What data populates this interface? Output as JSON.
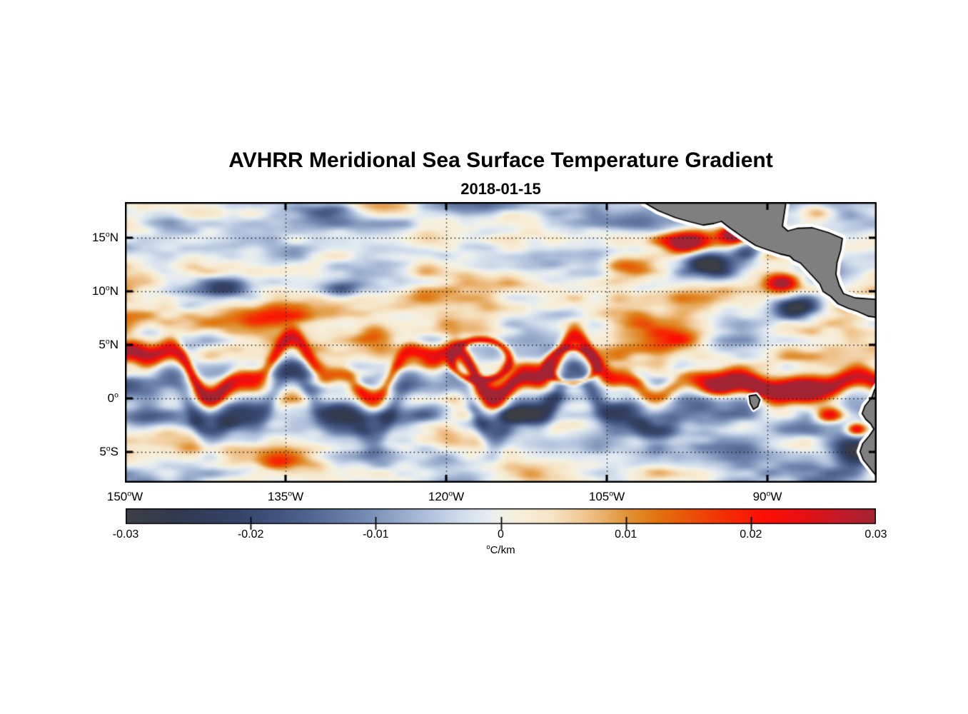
{
  "title": "AVHRR Meridional Sea Surface Temperature Gradient",
  "subtitle": "2018-01-15",
  "colorbar": {
    "ticks": [
      {
        "label": "-0.03",
        "value": -0.03
      },
      {
        "label": "-0.02",
        "value": -0.02
      },
      {
        "label": "-0.01",
        "value": -0.01
      },
      {
        "label": "0",
        "value": 0
      },
      {
        "label": "0.01",
        "value": 0.01
      },
      {
        "label": "0.02",
        "value": 0.02
      },
      {
        "label": "0.03",
        "value": 0.03
      }
    ],
    "range": [
      -0.03,
      0.03
    ],
    "unit": {
      "deg": "o",
      "rest": "C/km"
    }
  },
  "chart_data": {
    "type": "heatmap",
    "variable": "AVHRR meridional sea surface temperature gradient",
    "date": "2018-01-15",
    "units": "degC/km",
    "value_range": [
      -0.03,
      0.03
    ],
    "lon_range": [
      -150,
      -79.8
    ],
    "lat_range": [
      -7.85,
      18.35
    ],
    "grid": "dotted",
    "x_ticks": [
      {
        "num": "150",
        "deg": "o",
        "hemi": "W",
        "lon": -150
      },
      {
        "num": "135",
        "deg": "o",
        "hemi": "W",
        "lon": -135
      },
      {
        "num": "120",
        "deg": "o",
        "hemi": "W",
        "lon": -120
      },
      {
        "num": "105",
        "deg": "o",
        "hemi": "W",
        "lon": -105
      },
      {
        "num": "90",
        "deg": "o",
        "hemi": "W",
        "lon": -90
      }
    ],
    "y_ticks": [
      {
        "num": "15",
        "deg": "o",
        "hemi": "N",
        "lat": 15
      },
      {
        "num": "10",
        "deg": "o",
        "hemi": "N",
        "lat": 10
      },
      {
        "num": "5",
        "deg": "o",
        "hemi": "N",
        "lat": 5
      },
      {
        "num": "0",
        "deg": "o",
        "hemi": "",
        "lat": 0
      },
      {
        "num": "5",
        "deg": "o",
        "hemi": "S",
        "lat": -5
      }
    ],
    "colormap_stops": [
      [
        -0.03,
        "#3c4046"
      ],
      [
        -0.026,
        "#31394e"
      ],
      [
        -0.021,
        "#344368"
      ],
      [
        -0.016,
        "#4b5f8b"
      ],
      [
        -0.011,
        "#7289b1"
      ],
      [
        -0.006,
        "#aebfda"
      ],
      [
        -0.003,
        "#d3dfec"
      ],
      [
        -0.0012,
        "#e4ebf1"
      ],
      [
        0.0,
        "#eff1e8"
      ],
      [
        0.0012,
        "#f7efdc"
      ],
      [
        0.004,
        "#f6e6c8"
      ],
      [
        0.007,
        "#efc28b"
      ],
      [
        0.01,
        "#e09438"
      ],
      [
        0.0125,
        "#e2740f"
      ],
      [
        0.015,
        "#e95408"
      ],
      [
        0.018,
        "#f42d04"
      ],
      [
        0.021,
        "#fc0f03"
      ],
      [
        0.024,
        "#e90f12"
      ],
      [
        0.027,
        "#c51a27"
      ],
      [
        0.03,
        "#a22433"
      ]
    ],
    "visible_features": [
      "meandering positive (orange/red) front along 1-6N with tropical-instability-wave cusps and rings",
      "negative (slate blue) band just south of the equator",
      "strong red / dark-blue dipoles off Gulf of Tehuantepec and Gulf of Papagayo near the Central American coast",
      "dark red gradient maxima along 0.5-1.5N east of 100W and off Ecuador/Peru",
      "gray land (Mexico, Central America, Galapagos, South America) with white no-data coastal strips"
    ],
    "land": {
      "fill": "#7f7f7f",
      "outline": "#000000",
      "coast_gap_color": "#ffffff",
      "polygons": [
        {
          "name": "mexico-central-america",
          "halo": 11,
          "points": [
            [
              -101.6,
              19.2
            ],
            [
              -101.5,
              18.3
            ],
            [
              -100.2,
              17.55
            ],
            [
              -98.6,
              16.9
            ],
            [
              -97.2,
              16.5
            ],
            [
              -96.0,
              16.2
            ],
            [
              -95.0,
              16.35
            ],
            [
              -94.3,
              16.55
            ],
            [
              -93.6,
              16.0
            ],
            [
              -92.4,
              15.15
            ],
            [
              -91.1,
              14.3
            ],
            [
              -90.0,
              13.9
            ],
            [
              -88.8,
              13.5
            ],
            [
              -87.9,
              13.3
            ],
            [
              -87.55,
              12.95
            ],
            [
              -86.9,
              12.65
            ],
            [
              -86.3,
              12.0
            ],
            [
              -85.6,
              11.25
            ],
            [
              -85.1,
              10.7
            ],
            [
              -84.8,
              10.0
            ],
            [
              -84.1,
              9.55
            ],
            [
              -83.4,
              8.85
            ],
            [
              -82.5,
              8.45
            ],
            [
              -81.6,
              8.15
            ],
            [
              -80.6,
              7.7
            ],
            [
              -79.0,
              7.45
            ],
            [
              -78.0,
              7.6
            ],
            [
              -78.0,
              9.7
            ],
            [
              -79.6,
              9.25
            ],
            [
              -81.8,
              9.4
            ],
            [
              -82.9,
              9.8
            ],
            [
              -83.3,
              10.6
            ],
            [
              -83.6,
              11.6
            ],
            [
              -83.5,
              12.7
            ],
            [
              -83.15,
              13.9
            ],
            [
              -83.0,
              14.95
            ],
            [
              -84.3,
              15.5
            ],
            [
              -85.8,
              15.95
            ],
            [
              -87.2,
              15.9
            ],
            [
              -88.1,
              15.65
            ],
            [
              -88.6,
              16.1
            ],
            [
              -88.45,
              17.1
            ],
            [
              -88.3,
              18.1
            ],
            [
              -88.35,
              19.2
            ]
          ]
        },
        {
          "name": "south-america",
          "halo": 10,
          "points": [
            [
              -78.0,
              1.8
            ],
            [
              -79.6,
              1.4
            ],
            [
              -80.0,
              0.8
            ],
            [
              -80.25,
              0.1
            ],
            [
              -80.9,
              -0.7
            ],
            [
              -81.15,
              -1.4
            ],
            [
              -80.8,
              -1.95
            ],
            [
              -80.35,
              -2.35
            ],
            [
              -80.05,
              -2.85
            ],
            [
              -80.5,
              -3.5
            ],
            [
              -81.1,
              -4.2
            ],
            [
              -81.35,
              -4.95
            ],
            [
              -81.05,
              -5.7
            ],
            [
              -80.45,
              -6.45
            ],
            [
              -79.85,
              -7.2
            ],
            [
              -79.45,
              -8.1
            ],
            [
              -79.3,
              -8.6
            ],
            [
              -78.0,
              -8.6
            ]
          ]
        },
        {
          "name": "galapagos",
          "halo": 7,
          "points": [
            [
              -91.7,
              0.25
            ],
            [
              -91.05,
              0.35
            ],
            [
              -90.7,
              -0.1
            ],
            [
              -90.9,
              -0.75
            ],
            [
              -91.3,
              -1.0
            ],
            [
              -91.6,
              -0.45
            ]
          ]
        }
      ]
    },
    "field": {
      "grid": [
        352,
        132
      ],
      "clip": 0.032,
      "noise_octaves": [
        {
          "sx": 8.5,
          "sy": 2.4,
          "amp": 0.0085,
          "seed": 11
        },
        {
          "sx": 4.2,
          "sy": 1.35,
          "amp": 0.006,
          "seed": 23
        },
        {
          "sx": 2.0,
          "sy": 0.78,
          "amp": 0.0038,
          "seed": 47
        }
      ],
      "front": {
        "amp": 0.03,
        "width": 1.0,
        "base_west": 2.7,
        "base_east": 1.2,
        "meander_scale_east": 0.32,
        "m1": {
          "amp": 2.1,
          "period": 13.2,
          "phase": 0.4
        },
        "m2": {
          "amp": 0.85,
          "period": 5.3,
          "phase": 2.0
        },
        "east_transition": [
          -106,
          -96
        ],
        "lump": {
          "scale": 6.2,
          "min": 0.55,
          "range": 0.6,
          "seed": 77
        },
        "shadow": {
          "amp": -0.019,
          "offset": -3.3,
          "width": 1.6,
          "lump_scale": 7,
          "seed": 178,
          "east_fade": [
            -98,
            -88,
            0.5
          ]
        }
      },
      "bands": [
        {
          "lat": 7.7,
          "width": 1.15,
          "amp": 0.017,
          "lon_c": -139,
          "lon_sigma": 14,
          "seed": 301,
          "lump_scale": 5
        },
        {
          "lat": 13.6,
          "width": 2.6,
          "amp": -0.0075,
          "lon_c": -133,
          "lon_sigma": 20,
          "seed": 311,
          "lump_scale": 6
        },
        {
          "lat": 4.0,
          "width": 5.0,
          "amp": 0.002,
          "lon_c": -115,
          "lon_sigma": 45,
          "seed": 321,
          "lump_scale": 9
        }
      ],
      "rings": [
        {
          "lon": -116.8,
          "lat": 3.6,
          "rx": 2.7,
          "ry": 1.9,
          "w": 0.16,
          "amp": 0.024
        },
        {
          "lon": -108.3,
          "lat": 3.1,
          "rx": 2.3,
          "ry": 1.6,
          "w": 0.18,
          "amp": 0.02
        }
      ],
      "blobs": [
        [
          -97.6,
          14.6,
          2.0,
          1.1,
          0.036
        ],
        [
          -95.2,
          12.5,
          2.7,
          1.3,
          -0.04
        ],
        [
          -93.2,
          15.3,
          1.2,
          0.8,
          0.032
        ],
        [
          -91.9,
          13.9,
          1.5,
          0.9,
          -0.026
        ],
        [
          -88.6,
          10.8,
          1.6,
          0.9,
          0.036
        ],
        [
          -87.2,
          8.5,
          2.3,
          1.2,
          -0.036
        ],
        [
          -129.6,
          10.3,
          2.3,
          0.9,
          -0.02
        ],
        [
          -126.8,
          6.3,
          2.0,
          1.0,
          0.016
        ],
        [
          -149.2,
          4.7,
          2.2,
          0.9,
          0.014
        ],
        [
          -94.6,
          0.9,
          1.6,
          0.7,
          0.018
        ],
        [
          -90.5,
          1.0,
          5.5,
          0.8,
          0.012
        ],
        [
          -86.2,
          0.3,
          2.0,
          0.8,
          0.016
        ],
        [
          -84.2,
          -1.6,
          1.4,
          0.8,
          0.03
        ],
        [
          -81.7,
          -2.9,
          0.9,
          0.6,
          0.03
        ],
        [
          -82.0,
          -4.9,
          2.4,
          1.5,
          -0.03
        ],
        [
          -84.8,
          -7.4,
          4.5,
          1.6,
          -0.02
        ],
        [
          -143.0,
          -1.7,
          4.5,
          1.1,
          -0.017
        ],
        [
          -125.0,
          -1.9,
          5.0,
          1.1,
          -0.015
        ],
        [
          -112.5,
          -1.6,
          4.0,
          1.0,
          -0.014
        ],
        [
          -85.3,
          17.3,
          1.6,
          0.7,
          0.016
        ],
        [
          -140.5,
          10.3,
          2.0,
          0.8,
          -0.018
        ],
        [
          -135.5,
          -5.8,
          3.0,
          0.9,
          0.013
        ],
        [
          -120.5,
          -5.5,
          2.5,
          1.0,
          -0.012
        ],
        [
          -148.5,
          -2.2,
          2.5,
          0.9,
          -0.015
        ],
        [
          -118.0,
          17.9,
          4.0,
          0.9,
          -0.017
        ],
        [
          -109.0,
          17.5,
          4.0,
          1.0,
          -0.016
        ],
        [
          -103.0,
          12.3,
          3.0,
          1.0,
          0.017
        ],
        [
          -146.0,
          16.4,
          2.5,
          0.9,
          -0.012
        ],
        [
          -131.5,
          17.4,
          2.8,
          0.8,
          -0.013
        ],
        [
          -98.0,
          5.5,
          2.0,
          0.9,
          0.014
        ]
      ]
    }
  }
}
